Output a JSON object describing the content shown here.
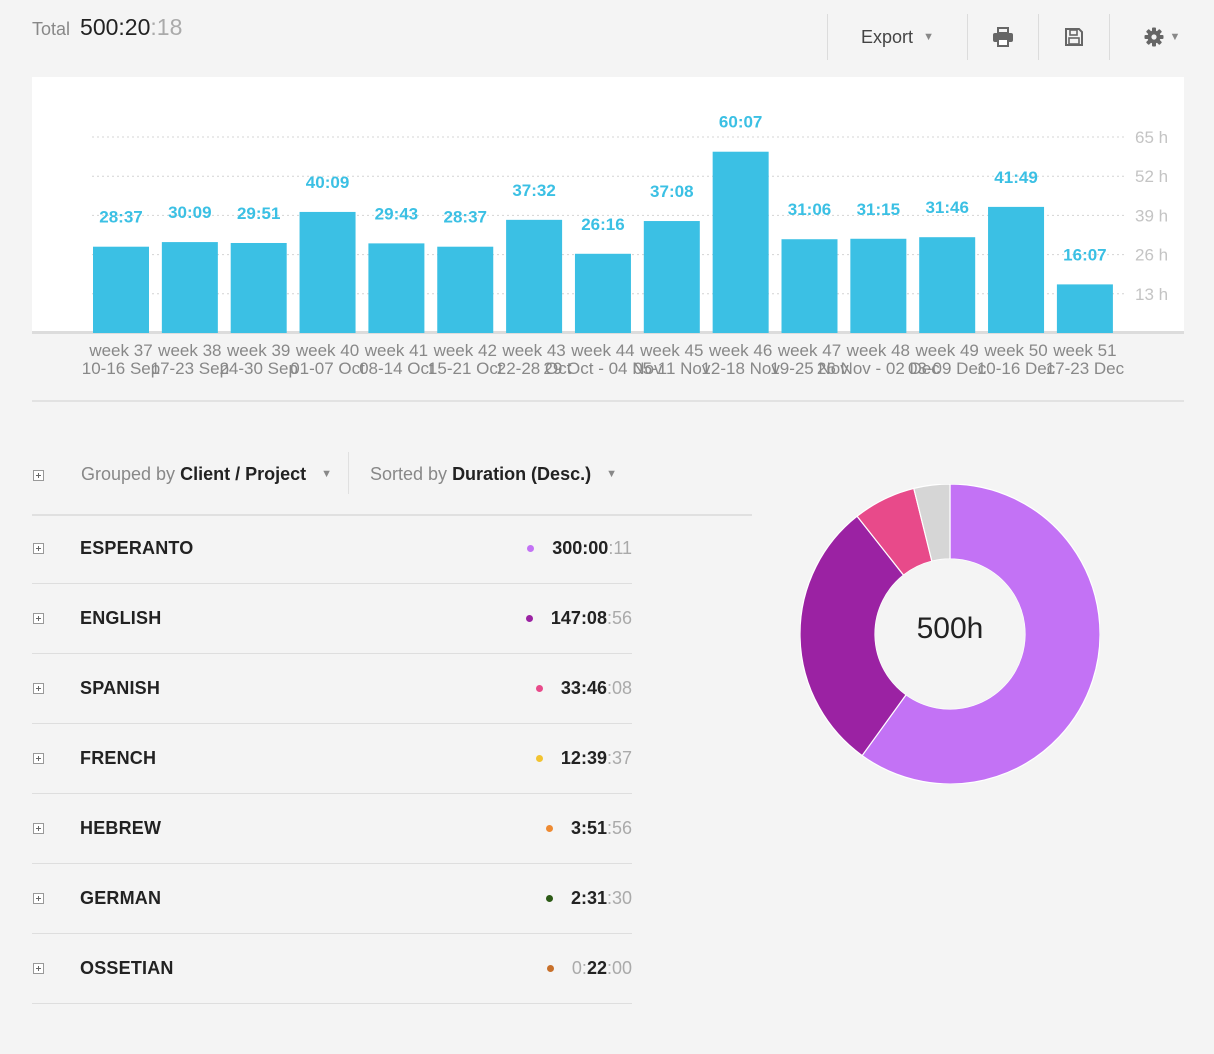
{
  "header": {
    "total_label": "Total",
    "total_main": "500:20",
    "total_seconds": ":18",
    "export_label": "Export",
    "icons": [
      "print-icon",
      "save-icon",
      "gear-icon"
    ]
  },
  "chart_data": {
    "type": "bar",
    "categories": [
      "week 37",
      "week 38",
      "week 39",
      "week 40",
      "week 41",
      "week 42",
      "week 43",
      "week 44",
      "week 45",
      "week 46",
      "week 47",
      "week 48",
      "week 49",
      "week 50",
      "week 51"
    ],
    "sub_labels": [
      "10-16 Sep",
      "17-23 Sep",
      "24-30 Sep",
      "01-07 Oct",
      "08-14 Oct",
      "15-21 Oct",
      "22-28 Oct",
      "29 Oct - 04 Nov",
      "05-11 Nov",
      "12-18 Nov",
      "19-25 Nov",
      "26 Nov - 02 Dec",
      "03-09 Dec",
      "10-16 Dec",
      "17-23 Dec"
    ],
    "values": [
      28.62,
      30.15,
      29.85,
      40.15,
      29.72,
      28.62,
      37.53,
      26.27,
      37.13,
      60.12,
      31.1,
      31.25,
      31.77,
      41.82,
      16.12
    ],
    "value_labels": [
      "28:37",
      "30:09",
      "29:51",
      "40:09",
      "29:43",
      "28:37",
      "37:32",
      "26:16",
      "37:08",
      "60:07",
      "31:06",
      "31:15",
      "31:46",
      "41:49",
      "16:07"
    ],
    "y_ticks": [
      "13 h",
      "26 h",
      "39 h",
      "52 h",
      "65 h"
    ],
    "y_tick_values": [
      13,
      26,
      39,
      52,
      65
    ],
    "ylim": [
      0,
      65
    ],
    "grid": true,
    "bar_color": "#3bc0e4"
  },
  "controls": {
    "group_prefix": "Grouped by",
    "group_value": "Client / Project",
    "sort_prefix": "Sorted by",
    "sort_value": "Duration (Desc.)"
  },
  "projects": [
    {
      "name": "ESPERANTO",
      "pre": "",
      "main": "300:00",
      "sec": ":11",
      "color": "#c372f5"
    },
    {
      "name": "ENGLISH",
      "pre": "",
      "main": "147:08",
      "sec": ":56",
      "color": "#9b22a3"
    },
    {
      "name": "SPANISH",
      "pre": "",
      "main": "33:46",
      "sec": ":08",
      "color": "#e84a8a"
    },
    {
      "name": "FRENCH",
      "pre": "",
      "main": "12:39",
      "sec": ":37",
      "color": "#f2c330"
    },
    {
      "name": "HEBREW",
      "pre": "",
      "main": "3:51",
      "sec": ":56",
      "color": "#ee8a32"
    },
    {
      "name": "GERMAN",
      "pre": "",
      "main": "2:31",
      "sec": ":30",
      "color": "#2c5a16"
    },
    {
      "name": "OSSETIAN",
      "pre": "0:",
      "main": "22",
      "sec": ":00",
      "color": "#c8702a"
    }
  ],
  "donut": {
    "center_label": "500h",
    "slices": [
      {
        "name": "ESPERANTO",
        "hours": 300.0,
        "color": "#c372f5"
      },
      {
        "name": "ENGLISH",
        "hours": 147.15,
        "color": "#9b22a3"
      },
      {
        "name": "SPANISH",
        "hours": 33.77,
        "color": "#e84a8a"
      },
      {
        "name": "Other",
        "hours": 19.4,
        "color": "#d6d6d6"
      }
    ]
  }
}
